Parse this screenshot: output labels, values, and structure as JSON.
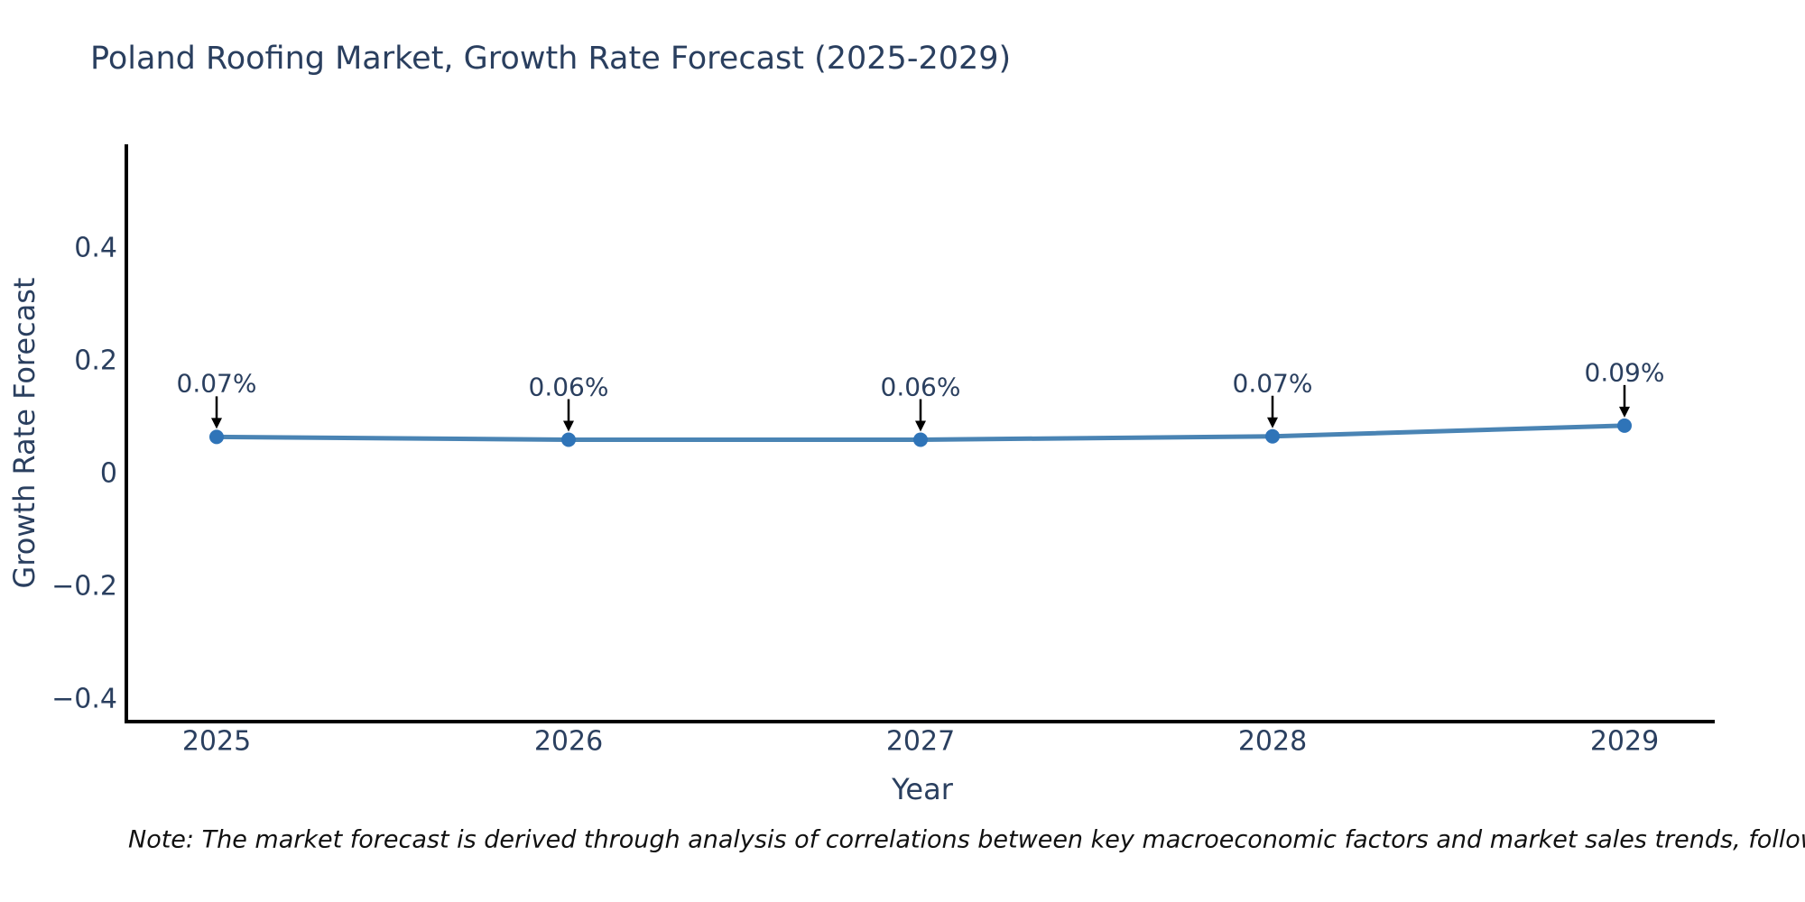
{
  "page": {
    "background": "#ffffff"
  },
  "title": "Poland Roofing Market, Growth Rate Forecast (2025-2029)",
  "note": "Note: The market forecast is derived through analysis of correlations between key macroeconomic factors and market sales trends, followed by predictive modeling to project future sales.",
  "chart_data": {
    "type": "line",
    "title": "Poland Roofing Market, Growth Rate Forecast (2025-2029)",
    "xlabel": "Year",
    "ylabel": "Growth Rate Forecast",
    "categories": [
      "2025",
      "2026",
      "2027",
      "2028",
      "2029"
    ],
    "series": [
      {
        "name": "Growth Rate Forecast",
        "values": [
          0.065,
          0.06,
          0.06,
          0.066,
          0.085
        ],
        "point_labels": [
          "0.07%",
          "0.06%",
          "0.06%",
          "0.07%",
          "0.09%"
        ]
      }
    ],
    "yticks": [
      {
        "value": 0.4,
        "label": "0.4"
      },
      {
        "value": 0.2,
        "label": "0.2"
      },
      {
        "value": 0,
        "label": "0"
      },
      {
        "value": -0.2,
        "label": "−0.2"
      },
      {
        "value": -0.4,
        "label": "−0.4"
      }
    ],
    "ylim": [
      -0.44,
      0.584
    ],
    "grid": false,
    "legend": "none",
    "annotations_have_arrows": true,
    "colors": {
      "line": "#4a84b4",
      "marker": "#2f74b8",
      "axis": "#000000",
      "arrow": "#000000",
      "text": "#2a3f5f",
      "note_text": "#111111"
    }
  }
}
